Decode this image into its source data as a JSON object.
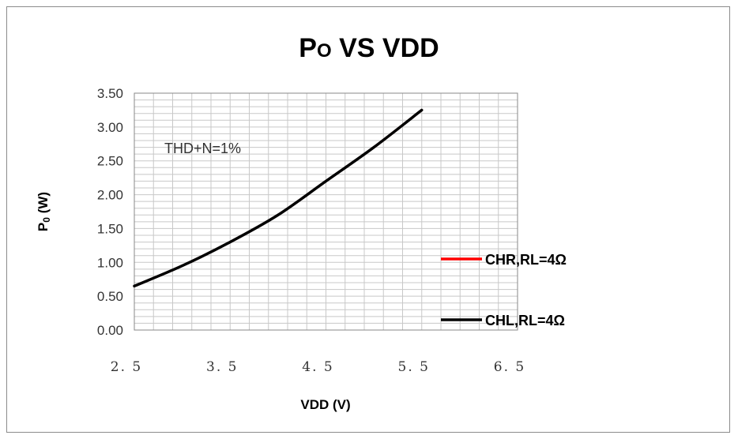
{
  "chart_data": {
    "type": "line",
    "title": {
      "base": "P",
      "subscript": "O",
      "rest": " VS VDD"
    },
    "xlabel": "VDD  (V)",
    "ylabel": {
      "base": "P",
      "subscript": "0",
      "rest": " (W)"
    },
    "xlim": [
      2.5,
      6.5
    ],
    "ylim": [
      0,
      3.5
    ],
    "x_ticks": [
      2.5,
      3.5,
      4.5,
      5.5,
      6.5
    ],
    "x_tick_labels": [
      "2. 5",
      "3. 5",
      "4. 5",
      "5. 5",
      "6. 5"
    ],
    "y_ticks": [
      0,
      0.5,
      1,
      1.5,
      2,
      2.5,
      3,
      3.5
    ],
    "y_tick_labels": [
      "0.00",
      "0.50",
      "1.00",
      "1.50",
      "2.00",
      "2.50",
      "3.00",
      "3.50"
    ],
    "grid": true,
    "annotation": "THD+N=1%",
    "legend_position": "right",
    "series": [
      {
        "name": "CHR,RL=4Ω",
        "color": "#ff0000",
        "x": [
          2.5,
          3.0,
          3.5,
          4.0,
          4.5,
          5.0,
          5.5
        ],
        "y": [
          0.65,
          0.95,
          1.3,
          1.7,
          2.2,
          2.7,
          3.25
        ]
      },
      {
        "name": "CHL,RL=4Ω",
        "color": "#000000",
        "x": [
          2.5,
          3.0,
          3.5,
          4.0,
          4.5,
          5.0,
          5.5
        ],
        "y": [
          0.65,
          0.95,
          1.3,
          1.7,
          2.2,
          2.7,
          3.25
        ]
      }
    ]
  }
}
